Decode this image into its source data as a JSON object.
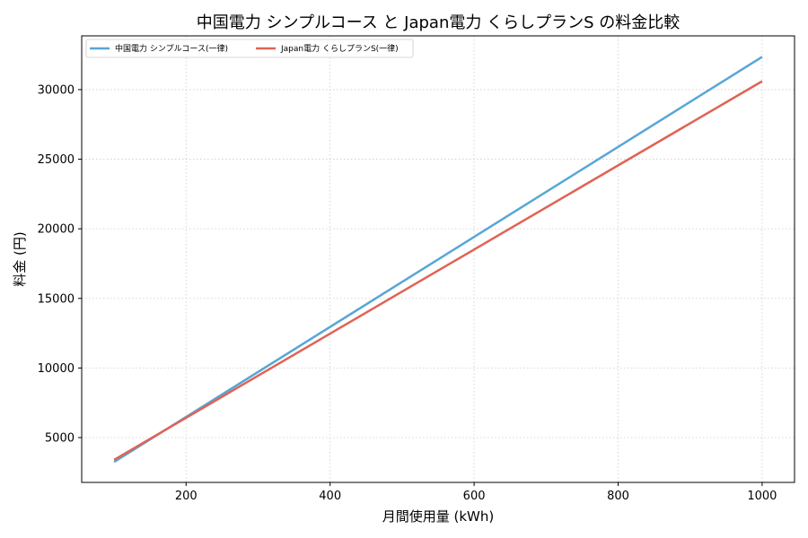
{
  "chart_data": {
    "type": "line",
    "title": "中国電力 シンプルコース と Japan電力 くらしプランS の料金比較",
    "xlabel": "月間使用量 (kWh)",
    "ylabel": "料金 (円)",
    "xlim": [
      55,
      1045
    ],
    "ylim": [
      1780,
      33860
    ],
    "xticks": [
      200,
      400,
      600,
      800,
      1000
    ],
    "yticks": [
      5000,
      10000,
      15000,
      20000,
      25000,
      30000
    ],
    "grid": true,
    "legend_position": "top-left",
    "series": [
      {
        "name": "中国電力 シンプルコース(一律)",
        "color": "#56a6d6",
        "x": [
          100,
          1000
        ],
        "y": [
          3250,
          32350
        ]
      },
      {
        "name": "Japan電力 くらしプランS(一律)",
        "color": "#e06355",
        "x": [
          100,
          1000
        ],
        "y": [
          3400,
          30600
        ]
      }
    ]
  }
}
